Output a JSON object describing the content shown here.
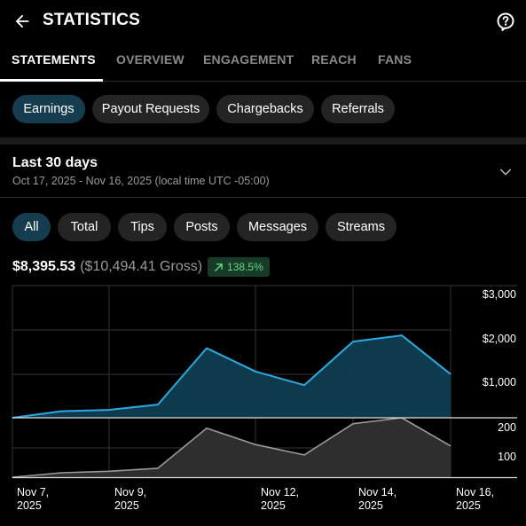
{
  "header": {
    "title": "STATISTICS"
  },
  "tabs": [
    {
      "label": "STATEMENTS"
    },
    {
      "label": "OVERVIEW"
    },
    {
      "label": "ENGAGEMENT"
    },
    {
      "label": "REACH"
    },
    {
      "label": "FANS"
    }
  ],
  "categories": [
    {
      "label": "Earnings"
    },
    {
      "label": "Payout Requests"
    },
    {
      "label": "Chargebacks"
    },
    {
      "label": "Referrals"
    }
  ],
  "date_range": {
    "title": "Last 30 days",
    "subtitle": "Oct 17, 2025 - Nov 16, 2025 (local time UTC -05:00)"
  },
  "filters": [
    {
      "label": "All"
    },
    {
      "label": "Total"
    },
    {
      "label": "Tips"
    },
    {
      "label": "Posts"
    },
    {
      "label": "Messages"
    },
    {
      "label": "Streams"
    }
  ],
  "summary": {
    "net": "$8,395.53",
    "gross": "($10,494.41 Gross)",
    "change": "138.5%"
  },
  "colors": {
    "accent": "#2eaae1",
    "secondary": "#9a9a9a",
    "active_chip": "#163d4f",
    "positive": "#5fd98a"
  },
  "chart_data": [
    {
      "type": "area",
      "x": [
        "Nov 7, 2025",
        "Nov 9, 2025",
        "Nov 12, 2025",
        "Nov 14, 2025",
        "Nov 16, 2025"
      ],
      "points": [
        {
          "x": "Nov 7",
          "y": 0
        },
        {
          "x": "Nov 8",
          "y": 150
        },
        {
          "x": "Nov 9",
          "y": 180
        },
        {
          "x": "Nov 10",
          "y": 300
        },
        {
          "x": "Nov 11",
          "y": 1580
        },
        {
          "x": "Nov 12",
          "y": 1050
        },
        {
          "x": "Nov 13",
          "y": 740
        },
        {
          "x": "Nov 14",
          "y": 1730
        },
        {
          "x": "Nov 15",
          "y": 1870
        },
        {
          "x": "Nov 16",
          "y": 990
        }
      ],
      "y_ticks": [
        "$1,000",
        "$2,000",
        "$3,000"
      ],
      "ylim": [
        0,
        3000
      ],
      "grid": true
    },
    {
      "type": "area",
      "points": [
        {
          "x": "Nov 7",
          "y": 0
        },
        {
          "x": "Nov 8",
          "y": 15
        },
        {
          "x": "Nov 9",
          "y": 20
        },
        {
          "x": "Nov 10",
          "y": 30
        },
        {
          "x": "Nov 11",
          "y": 165
        },
        {
          "x": "Nov 12",
          "y": 110
        },
        {
          "x": "Nov 13",
          "y": 75
        },
        {
          "x": "Nov 14",
          "y": 180
        },
        {
          "x": "Nov 15",
          "y": 200
        },
        {
          "x": "Nov 16",
          "y": 105
        }
      ],
      "y_ticks": [
        "100",
        "200"
      ],
      "ylim": [
        0,
        200
      ],
      "grid": true
    }
  ]
}
